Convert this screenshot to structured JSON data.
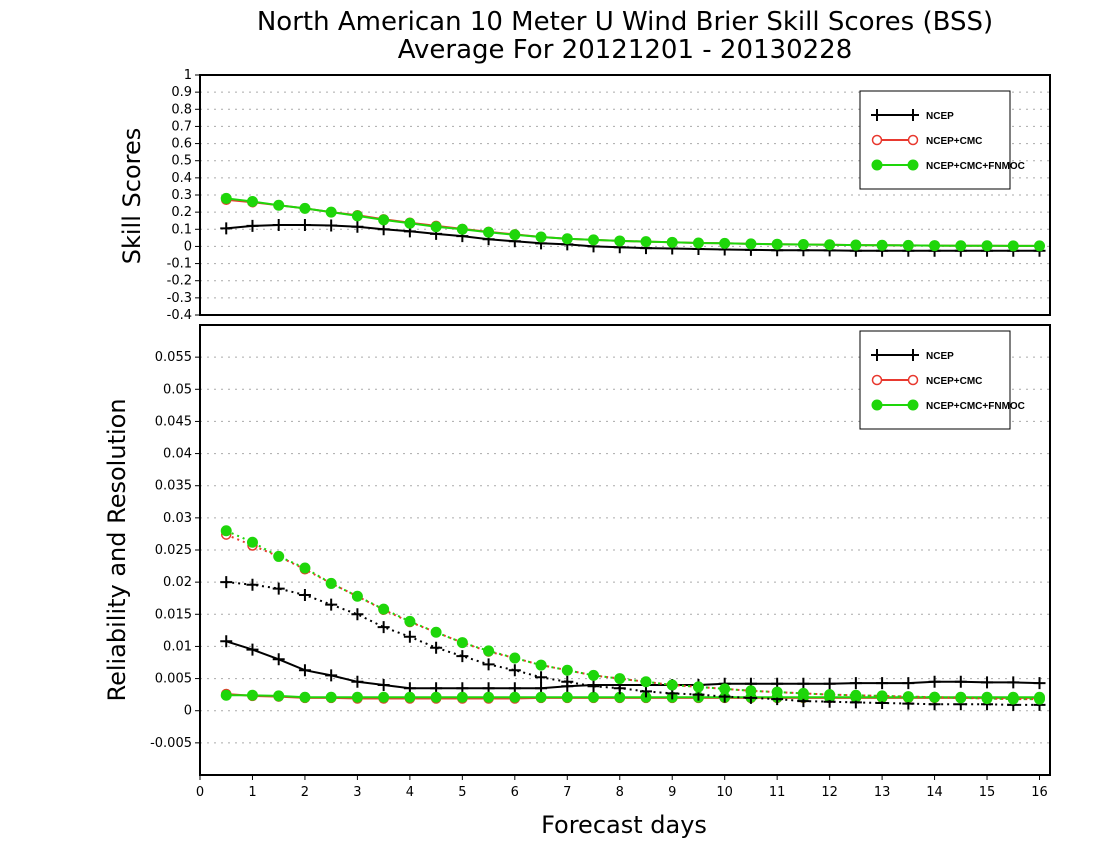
{
  "title_line1": "North American 10 Meter U Wind Brier Skill Scores (BSS)",
  "title_line2": "Average For 20121201 - 20130228",
  "colors": {
    "ncep": "#000000",
    "cmc": "#e8392f",
    "fnmoc": "#1ed60a"
  },
  "chart_data": [
    {
      "type": "line",
      "panel": "top",
      "ylabel": "Skill Scores",
      "ylim": [
        -0.4,
        1
      ],
      "yticks": [
        "1",
        "0.9",
        "0.8",
        "0.7",
        "0.6",
        "0.5",
        "0.4",
        "0.3",
        "0.2",
        "0.1",
        "0",
        "-0.1",
        "-0.2",
        "-0.3",
        "-0.4"
      ],
      "grid": true,
      "legend_position": "top-right",
      "x": [
        0.5,
        1,
        1.5,
        2,
        2.5,
        3,
        3.5,
        4,
        4.5,
        5,
        5.5,
        6,
        6.5,
        7,
        7.5,
        8,
        8.5,
        9,
        9.5,
        10,
        10.5,
        11,
        11.5,
        12,
        12.5,
        13,
        13.5,
        14,
        14.5,
        15,
        15.5,
        16
      ],
      "series": [
        {
          "name": "NCEP",
          "color_key": "ncep",
          "marker": "plus",
          "dash": "solid",
          "values": [
            0.105,
            0.12,
            0.125,
            0.125,
            0.122,
            0.115,
            0.1,
            0.088,
            0.073,
            0.06,
            0.042,
            0.03,
            0.018,
            0.012,
            0.0,
            -0.005,
            -0.01,
            -0.012,
            -0.015,
            -0.018,
            -0.02,
            -0.022,
            -0.022,
            -0.023,
            -0.025,
            -0.025,
            -0.025,
            -0.025,
            -0.025,
            -0.025,
            -0.025,
            -0.025
          ]
        },
        {
          "name": "NCEP+CMC",
          "color_key": "cmc",
          "marker": "circle-open",
          "dash": "solid",
          "values": [
            0.272,
            0.258,
            0.24,
            0.222,
            0.2,
            0.182,
            0.158,
            0.138,
            0.12,
            0.102,
            0.085,
            0.07,
            0.055,
            0.045,
            0.038,
            0.032,
            0.028,
            0.024,
            0.02,
            0.018,
            0.015,
            0.013,
            0.011,
            0.01,
            0.008,
            0.007,
            0.006,
            0.005,
            0.004,
            0.004,
            0.003,
            0.003
          ]
        },
        {
          "name": "NCEP+CMC+FNMOC",
          "color_key": "fnmoc",
          "marker": "circle-filled",
          "dash": "solid",
          "values": [
            0.28,
            0.262,
            0.24,
            0.222,
            0.2,
            0.178,
            0.155,
            0.135,
            0.115,
            0.1,
            0.083,
            0.068,
            0.055,
            0.045,
            0.038,
            0.032,
            0.028,
            0.024,
            0.02,
            0.018,
            0.015,
            0.013,
            0.011,
            0.01,
            0.008,
            0.007,
            0.006,
            0.005,
            0.004,
            0.004,
            0.003,
            0.003
          ]
        }
      ]
    },
    {
      "type": "line",
      "panel": "bottom",
      "ylabel": "Reliability and Resolution",
      "xlabel": "Forecast days",
      "ylim": [
        -0.01,
        0.06
      ],
      "yticks": [
        "0.055",
        "0.05",
        "0.045",
        "0.04",
        "0.035",
        "0.03",
        "0.025",
        "0.02",
        "0.015",
        "0.01",
        "0.005",
        "0",
        "-0.005"
      ],
      "xticks": [
        "0",
        "1",
        "2",
        "3",
        "4",
        "5",
        "6",
        "7",
        "8",
        "9",
        "10",
        "11",
        "12",
        "13",
        "14",
        "15",
        "16"
      ],
      "xlim": [
        0,
        16.2
      ],
      "grid": true,
      "legend_position": "top-right",
      "x": [
        0.5,
        1,
        1.5,
        2,
        2.5,
        3,
        3.5,
        4,
        4.5,
        5,
        5.5,
        6,
        6.5,
        7,
        7.5,
        8,
        8.5,
        9,
        9.5,
        10,
        10.5,
        11,
        11.5,
        12,
        12.5,
        13,
        13.5,
        14,
        14.5,
        15,
        15.5,
        16
      ],
      "series": [
        {
          "name": "NCEP",
          "role": "reliability",
          "color_key": "ncep",
          "marker": "plus",
          "dash": "solid",
          "in_legend": true,
          "values": [
            0.0108,
            0.0095,
            0.008,
            0.0063,
            0.0055,
            0.0045,
            0.004,
            0.0035,
            0.0035,
            0.0035,
            0.0035,
            0.0035,
            0.0035,
            0.0038,
            0.004,
            0.004,
            0.004,
            0.004,
            0.004,
            0.0042,
            0.0042,
            0.0042,
            0.0042,
            0.0042,
            0.0043,
            0.0043,
            0.0043,
            0.0045,
            0.0045,
            0.0044,
            0.0044,
            0.0043
          ]
        },
        {
          "name": "NCEP+CMC",
          "role": "reliability",
          "color_key": "cmc",
          "marker": "circle-open",
          "dash": "solid",
          "in_legend": true,
          "values": [
            0.0026,
            0.0023,
            0.0022,
            0.002,
            0.002,
            0.0019,
            0.0019,
            0.0019,
            0.0019,
            0.0019,
            0.0019,
            0.0019,
            0.002,
            0.002,
            0.002,
            0.002,
            0.002,
            0.002,
            0.002,
            0.002,
            0.002,
            0.002,
            0.002,
            0.002,
            0.002,
            0.002,
            0.002,
            0.002,
            0.002,
            0.002,
            0.002,
            0.002
          ]
        },
        {
          "name": "NCEP+CMC+FNMOC",
          "role": "reliability",
          "color_key": "fnmoc",
          "marker": "circle-filled",
          "dash": "solid",
          "in_legend": true,
          "values": [
            0.0024,
            0.0024,
            0.0023,
            0.0021,
            0.0021,
            0.0021,
            0.0021,
            0.0021,
            0.0021,
            0.0021,
            0.0021,
            0.0021,
            0.0021,
            0.0021,
            0.0021,
            0.0021,
            0.0021,
            0.0021,
            0.0021,
            0.0021,
            0.0021,
            0.0021,
            0.0021,
            0.0021,
            0.0021,
            0.0021,
            0.0021,
            0.0021,
            0.0021,
            0.0021,
            0.0021,
            0.0021
          ]
        },
        {
          "role": "resolution",
          "color_key": "ncep",
          "marker": "plus",
          "dash": "dotted",
          "in_legend": false,
          "values": [
            0.02,
            0.0196,
            0.019,
            0.018,
            0.0165,
            0.015,
            0.013,
            0.0115,
            0.0098,
            0.0085,
            0.0072,
            0.0063,
            0.0052,
            0.0045,
            0.0038,
            0.0035,
            0.003,
            0.0027,
            0.0025,
            0.0022,
            0.002,
            0.0018,
            0.0015,
            0.0014,
            0.0013,
            0.0012,
            0.0011,
            0.001,
            0.001,
            0.001,
            0.0009,
            0.0009
          ]
        },
        {
          "role": "resolution",
          "color_key": "cmc",
          "marker": "circle-open",
          "dash": "dotted",
          "in_legend": false,
          "values": [
            0.0274,
            0.0257,
            0.024,
            0.022,
            0.0198,
            0.0178,
            0.0157,
            0.0138,
            0.0122,
            0.0106,
            0.0092,
            0.0082,
            0.0071,
            0.0063,
            0.0055,
            0.005,
            0.0045,
            0.004,
            0.0037,
            0.0034,
            0.0031,
            0.0029,
            0.0027,
            0.0025,
            0.0024,
            0.0023,
            0.0022,
            0.0021,
            0.002,
            0.0019,
            0.0018,
            0.0018
          ]
        },
        {
          "role": "resolution",
          "color_key": "fnmoc",
          "marker": "circle-filled",
          "dash": "dotted",
          "in_legend": false,
          "values": [
            0.028,
            0.0262,
            0.024,
            0.0222,
            0.0198,
            0.0178,
            0.0158,
            0.0139,
            0.0122,
            0.0106,
            0.0093,
            0.0082,
            0.0071,
            0.0063,
            0.0055,
            0.005,
            0.0045,
            0.004,
            0.0037,
            0.0034,
            0.0031,
            0.0029,
            0.0027,
            0.0025,
            0.0024,
            0.0023,
            0.0022,
            0.0021,
            0.002,
            0.0019,
            0.0018,
            0.0018
          ]
        }
      ]
    }
  ]
}
